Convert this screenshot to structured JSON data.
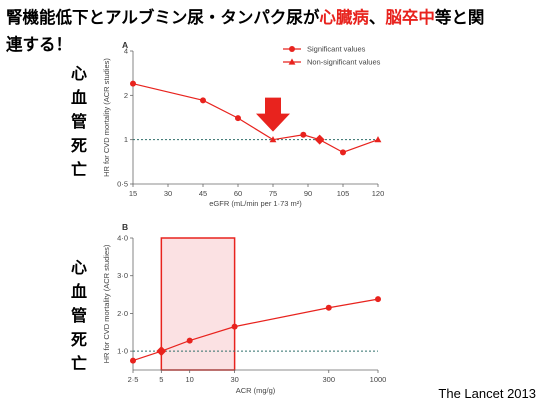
{
  "title": {
    "line1_part1": "腎機能低下とアルブミン尿・タンパク尿が",
    "line1_red1": "心臓病",
    "line1_sep": "、",
    "line1_red2": "脳卒中",
    "line1_part2": "等と関",
    "line2": "連する！"
  },
  "side_label_a": [
    "心",
    "血",
    "管",
    "死",
    "亡"
  ],
  "side_label_b": [
    "心",
    "血",
    "管",
    "死",
    "亡"
  ],
  "credit": "The Lancet 2013",
  "colors": {
    "series": "#e8231e",
    "highlight_fill": "#fbe1e3",
    "arrow": "#e8231e",
    "ref_line": "#2f6f6a"
  },
  "chart_data": [
    {
      "panel": "A",
      "type": "line",
      "ylabel": "HR for CVD mortality (ACR studies)",
      "xlabel": "eGFR (mL/min per 1·73 m²)",
      "x_ticks": [
        "15",
        "30",
        "45",
        "60",
        "75",
        "90",
        "105",
        "120"
      ],
      "y_ticks": [
        "0·5",
        "1",
        "2",
        "4"
      ],
      "yscale": "log",
      "ylim": [
        0.5,
        4
      ],
      "xlim": [
        15,
        120
      ],
      "reference_y": 1,
      "legend": {
        "position": "top-right",
        "significant": "Significant values",
        "non_significant": "Non-significant values"
      },
      "points": [
        {
          "x": 15,
          "y": 2.4,
          "significant": true
        },
        {
          "x": 45,
          "y": 1.85,
          "significant": true
        },
        {
          "x": 60,
          "y": 1.4,
          "significant": true
        },
        {
          "x": 75,
          "y": 1.0,
          "significant": false
        },
        {
          "x": 88,
          "y": 1.08,
          "significant": true
        },
        {
          "x": 95,
          "y": 1.0,
          "reference": true
        },
        {
          "x": 105,
          "y": 0.82,
          "significant": true
        },
        {
          "x": 120,
          "y": 1.0,
          "significant": false
        }
      ],
      "arrow_at_x": 75
    },
    {
      "panel": "B",
      "type": "line",
      "ylabel": "HR for CVD mortality (ACR studies)",
      "xlabel": "ACR (mg/g)",
      "x_ticks": [
        "2·5",
        "5",
        "10",
        "30",
        "300",
        "1000"
      ],
      "y_ticks": [
        "1·0",
        "2·0",
        "3·0",
        "4·0"
      ],
      "xscale": "log",
      "ylim": [
        0.5,
        4
      ],
      "xlim": [
        2.5,
        1000
      ],
      "reference_y": 1,
      "highlight_x_range": [
        5,
        30
      ],
      "points": [
        {
          "x": 2.5,
          "y": 0.75,
          "significant": true
        },
        {
          "x": 5,
          "y": 1.0,
          "reference": true
        },
        {
          "x": 10,
          "y": 1.28,
          "significant": true
        },
        {
          "x": 30,
          "y": 1.65,
          "significant": true
        },
        {
          "x": 300,
          "y": 2.15,
          "significant": true
        },
        {
          "x": 1000,
          "y": 2.38,
          "significant": true
        }
      ]
    }
  ]
}
